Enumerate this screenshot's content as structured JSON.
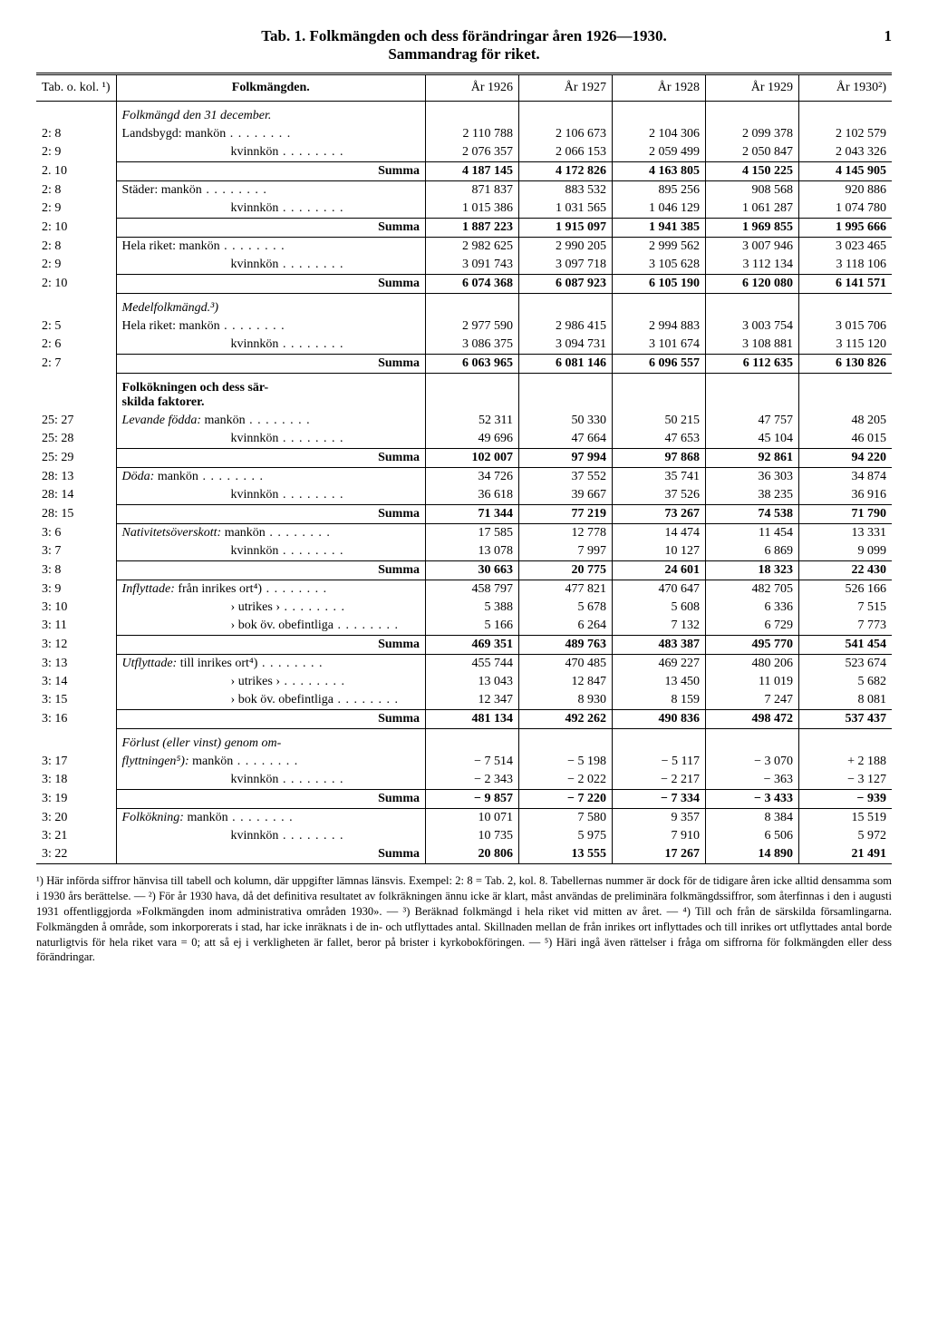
{
  "page_number": "1",
  "title": "Tab. 1.  Folkmängden och dess förändringar åren 1926—1930.",
  "subtitle": "Sammandrag för riket.",
  "header": {
    "ref": "Tab. o. kol. ¹)",
    "label": "Folkmängden.",
    "years": [
      "År 1926",
      "År 1927",
      "År 1928",
      "År 1929",
      "År 1930²)"
    ]
  },
  "sections": [
    {
      "heading_italic": "Folkmängd den 31 december.",
      "rows": [
        {
          "ref": "2: 8",
          "label": "Landsbygd: mankön",
          "vals": [
            "2 110 788",
            "2 106 673",
            "2 104 306",
            "2 099 378",
            "2 102 579"
          ]
        },
        {
          "ref": "2: 9",
          "label": "kvinnkön",
          "indent": true,
          "vals": [
            "2 076 357",
            "2 066 153",
            "2 059 499",
            "2 050 847",
            "2 043 326"
          ]
        }
      ],
      "sum": {
        "ref": "2. 10",
        "label": "Summa",
        "vals": [
          "4 187 145",
          "4 172 826",
          "4 163 805",
          "4 150 225",
          "4 145 905"
        ]
      }
    },
    {
      "rows": [
        {
          "ref": "2: 8",
          "label": "Städer: mankön",
          "vals": [
            "871 837",
            "883 532",
            "895 256",
            "908 568",
            "920 886"
          ]
        },
        {
          "ref": "2: 9",
          "label": "kvinnkön",
          "indent": true,
          "vals": [
            "1 015 386",
            "1 031 565",
            "1 046 129",
            "1 061 287",
            "1 074 780"
          ]
        }
      ],
      "sum": {
        "ref": "2: 10",
        "label": "Summa",
        "vals": [
          "1 887 223",
          "1 915 097",
          "1 941 385",
          "1 969 855",
          "1 995 666"
        ]
      }
    },
    {
      "rows": [
        {
          "ref": "2: 8",
          "label": "Hela riket: mankön",
          "vals": [
            "2 982 625",
            "2 990 205",
            "2 999 562",
            "3 007 946",
            "3 023 465"
          ]
        },
        {
          "ref": "2: 9",
          "label": "kvinnkön",
          "indent": true,
          "vals": [
            "3 091 743",
            "3 097 718",
            "3 105 628",
            "3 112 134",
            "3 118 106"
          ]
        }
      ],
      "sum": {
        "ref": "2: 10",
        "label": "Summa",
        "vals": [
          "6 074 368",
          "6 087 923",
          "6 105 190",
          "6 120 080",
          "6 141 571"
        ]
      }
    },
    {
      "heading_italic": "Medelfolkmängd.³)",
      "rows": [
        {
          "ref": "2: 5",
          "label": "Hela riket: mankön",
          "vals": [
            "2 977 590",
            "2 986 415",
            "2 994 883",
            "3 003 754",
            "3 015 706"
          ]
        },
        {
          "ref": "2: 6",
          "label": "kvinnkön",
          "indent": true,
          "vals": [
            "3 086 375",
            "3 094 731",
            "3 101 674",
            "3 108 881",
            "3 115 120"
          ]
        }
      ],
      "sum": {
        "ref": "2: 7",
        "label": "Summa",
        "vals": [
          "6 063 965",
          "6 081 146",
          "6 096 557",
          "6 112 635",
          "6 130 826"
        ]
      }
    },
    {
      "heading_bold": "Folkökningen och dess sär-\nskilda faktorer.",
      "rows": [
        {
          "ref": "25: 27",
          "label_italic": "Levande födda:",
          "label_rest": " mankön",
          "vals": [
            "52 311",
            "50 330",
            "50 215",
            "47 757",
            "48 205"
          ]
        },
        {
          "ref": "25: 28",
          "label": "kvinnkön",
          "indent": true,
          "vals": [
            "49 696",
            "47 664",
            "47 653",
            "45 104",
            "46 015"
          ]
        }
      ],
      "sum": {
        "ref": "25: 29",
        "label": "Summa",
        "vals": [
          "102 007",
          "97 994",
          "97 868",
          "92 861",
          "94 220"
        ]
      }
    },
    {
      "rows": [
        {
          "ref": "28: 13",
          "label_italic": "Döda:",
          "label_rest": " mankön",
          "vals": [
            "34 726",
            "37 552",
            "35 741",
            "36 303",
            "34 874"
          ]
        },
        {
          "ref": "28: 14",
          "label": "kvinnkön",
          "indent": true,
          "vals": [
            "36 618",
            "39 667",
            "37 526",
            "38 235",
            "36 916"
          ]
        }
      ],
      "sum": {
        "ref": "28: 15",
        "label": "Summa",
        "vals": [
          "71 344",
          "77 219",
          "73 267",
          "74 538",
          "71 790"
        ]
      }
    },
    {
      "rows": [
        {
          "ref": "3: 6",
          "label_italic": "Nativitetsöverskott:",
          "label_rest": " mankön",
          "vals": [
            "17 585",
            "12 778",
            "14 474",
            "11 454",
            "13 331"
          ]
        },
        {
          "ref": "3: 7",
          "label": "kvinnkön",
          "indent": true,
          "vals": [
            "13 078",
            "7 997",
            "10 127",
            "6 869",
            "9 099"
          ]
        }
      ],
      "sum": {
        "ref": "3: 8",
        "label": "Summa",
        "vals": [
          "30 663",
          "20 775",
          "24 601",
          "18 323",
          "22 430"
        ]
      }
    },
    {
      "rows": [
        {
          "ref": "3: 9",
          "label_italic": "Inflyttade:",
          "label_rest": " från inrikes ort⁴)",
          "vals": [
            "458 797",
            "477 821",
            "470 647",
            "482 705",
            "526 166"
          ]
        },
        {
          "ref": "3: 10",
          "label": "›   utrikes   ›",
          "indent": true,
          "vals": [
            "5 388",
            "5 678",
            "5 608",
            "6 336",
            "7 515"
          ]
        },
        {
          "ref": "3: 11",
          "label": "›   bok öv. obefintliga",
          "indent": true,
          "vals": [
            "5 166",
            "6 264",
            "7 132",
            "6 729",
            "7 773"
          ]
        }
      ],
      "sum": {
        "ref": "3: 12",
        "label": "Summa",
        "vals": [
          "469 351",
          "489 763",
          "483 387",
          "495 770",
          "541 454"
        ]
      }
    },
    {
      "rows": [
        {
          "ref": "3: 13",
          "label_italic": "Utflyttade:",
          "label_rest": " till inrikes ort⁴)",
          "vals": [
            "455 744",
            "470 485",
            "469 227",
            "480 206",
            "523 674"
          ]
        },
        {
          "ref": "3: 14",
          "label": "›   utrikes   ›",
          "indent": true,
          "vals": [
            "13 043",
            "12 847",
            "13 450",
            "11 019",
            "5 682"
          ]
        },
        {
          "ref": "3: 15",
          "label": "›   bok öv. obefintliga",
          "indent": true,
          "vals": [
            "12 347",
            "8 930",
            "8 159",
            "7 247",
            "8 081"
          ]
        }
      ],
      "sum": {
        "ref": "3: 16",
        "label": "Summa",
        "vals": [
          "481 134",
          "492 262",
          "490 836",
          "498 472",
          "537 437"
        ]
      }
    },
    {
      "heading_italic_inline": "Förlust (eller vinst) genom om-",
      "rows": [
        {
          "ref": "3: 17",
          "label_italic": "flyttningen⁵):",
          "label_rest": " mankön",
          "vals": [
            "−  7 514",
            "−  5 198",
            "−  5 117",
            "−  3 070",
            "+  2 188"
          ]
        },
        {
          "ref": "3: 18",
          "label": "kvinnkön",
          "indent": true,
          "vals": [
            "−  2 343",
            "−  2 022",
            "−  2 217",
            "−    363",
            "−  3 127"
          ]
        }
      ],
      "sum": {
        "ref": "3: 19",
        "label": "Summa",
        "vals": [
          "−  9 857",
          "−  7 220",
          "−  7 334",
          "−  3 433",
          "−    939"
        ]
      }
    },
    {
      "rows": [
        {
          "ref": "3: 20",
          "label_italic": "Folkökning:",
          "label_rest": " mankön",
          "vals": [
            "10 071",
            "7 580",
            "9 357",
            "8 384",
            "15 519"
          ]
        },
        {
          "ref": "3: 21",
          "label": "kvinnkön",
          "indent": true,
          "vals": [
            "10 735",
            "5 975",
            "7 910",
            "6 506",
            "5 972"
          ]
        }
      ],
      "sum": {
        "ref": "3: 22",
        "label": "Summa",
        "vals": [
          "20 806",
          "13 555",
          "17 267",
          "14 890",
          "21 491"
        ],
        "open": true
      }
    }
  ],
  "footnotes": "¹) Här införda siffror hänvisa till tabell och kolumn, där uppgifter lämnas länsvis. Exempel: 2: 8 = Tab. 2, kol. 8. Tabellernas nummer är dock för de tidigare åren icke alltid densamma som i 1930 års berättelse. — ²) För år 1930 hava, då det definitiva resultatet av folkräkningen ännu icke är klart, måst användas de preliminära folkmängdssiffror, som återfinnas i den i augusti 1931 offentliggjorda »Folkmängden inom administrativa områden 1930». — ³) Beräknad folkmängd i hela riket vid mitten av året. — ⁴) Till och från de särskilda församlingarna. Folkmängden å område, som inkorporerats i stad, har icke inräknats i de in- och utflyttades antal. Skillnaden mellan de från inrikes ort inflyttades och till inrikes ort utflyttades antal borde naturligtvis för hela riket vara = 0; att så ej i verkligheten är fallet, beror på brister i kyrkobokföringen. — ⁵) Häri ingå även rättelser i fråga om siffrorna för folkmängden eller dess förändringar."
}
